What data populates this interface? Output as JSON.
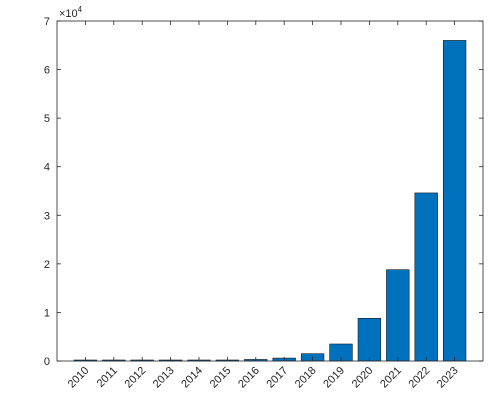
{
  "chart_data": {
    "type": "bar",
    "categories": [
      "2010",
      "2011",
      "2012",
      "2013",
      "2014",
      "2015",
      "2016",
      "2017",
      "2018",
      "2019",
      "2020",
      "2021",
      "2022",
      "2023"
    ],
    "values": [
      150,
      160,
      170,
      180,
      190,
      200,
      320,
      600,
      1500,
      3500,
      8800,
      18800,
      34600,
      66000
    ],
    "title": "",
    "xlabel": "",
    "ylabel": "",
    "ylim": [
      0,
      70000
    ],
    "yticks": [
      0,
      10000,
      20000,
      30000,
      40000,
      50000,
      60000,
      70000
    ],
    "ytick_labels": [
      "0",
      "1",
      "2",
      "3",
      "4",
      "5",
      "6",
      "7"
    ],
    "y_exponent": {
      "base": "×10",
      "power": "4"
    },
    "grid": false,
    "bar_color": "#0072BD",
    "bar_edge_color": "#1a1a1a",
    "axis_color": "#262626"
  }
}
